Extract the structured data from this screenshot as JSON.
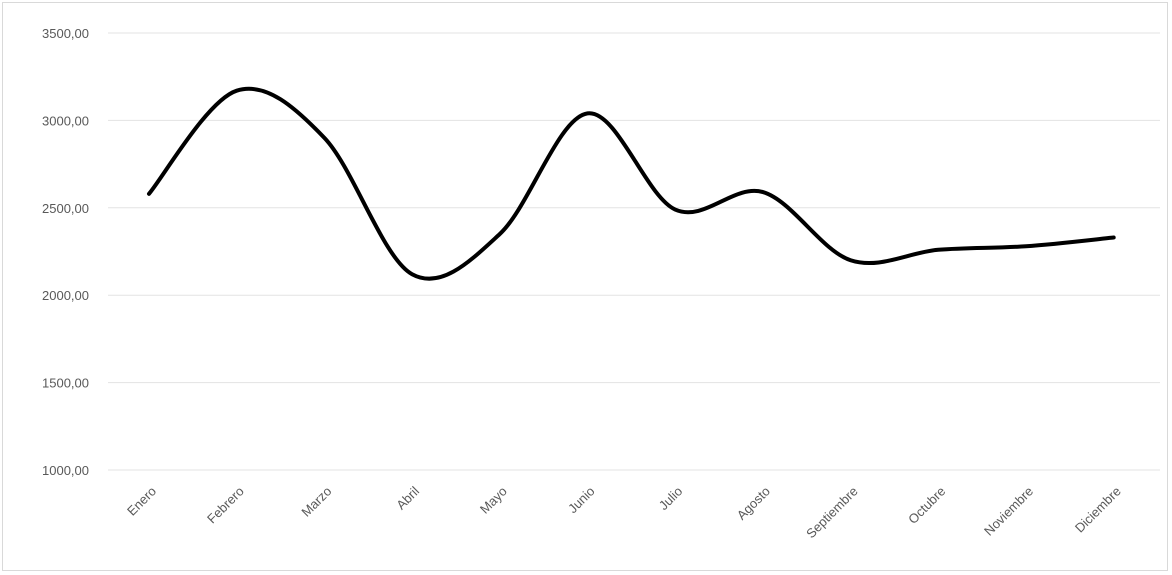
{
  "chart_data": {
    "type": "line",
    "categories": [
      "Enero",
      "Febrero",
      "Marzo",
      "Abril",
      "Mayo",
      "Junio",
      "Julio",
      "Agosto",
      "Septiembre",
      "Octubre",
      "Noviembre",
      "Diciembre"
    ],
    "series": [
      {
        "values": [
          2580,
          3170,
          2900,
          2120,
          2350,
          3040,
          2490,
          2590,
          2200,
          2260,
          2280,
          2330
        ],
        "color": "#000000"
      }
    ],
    "y_ticks": [
      "1000,00",
      "1500,00",
      "2000,00",
      "2500,00",
      "3000,00",
      "3500,00"
    ],
    "ylim": [
      1000,
      3500
    ],
    "smooth": true,
    "grid": "horizontal",
    "legend": "none",
    "title": "",
    "xlabel": "",
    "ylabel": ""
  }
}
